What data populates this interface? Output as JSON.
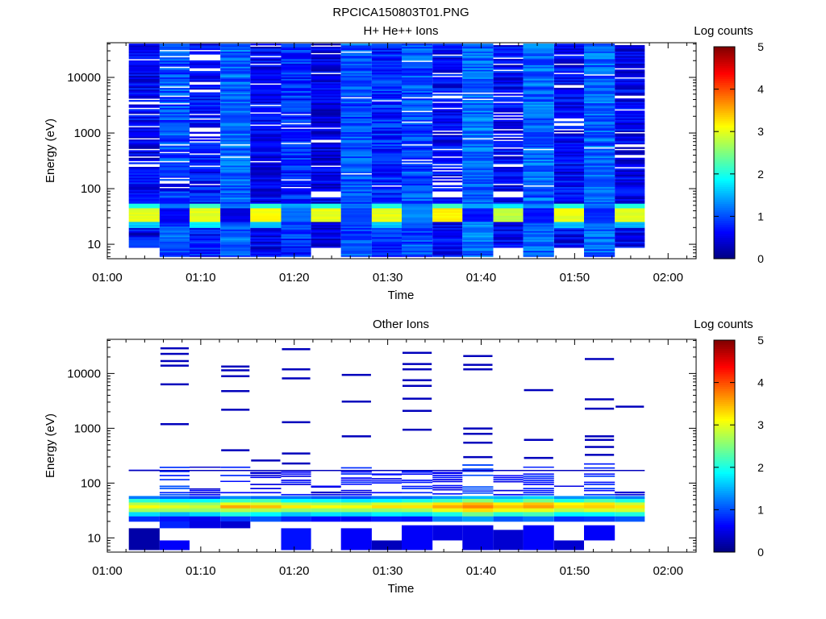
{
  "figure_title": "RPCICA150803T01.PNG",
  "colormap": [
    "#00007f",
    "#0000ff",
    "#007fff",
    "#00ffff",
    "#7fff7f",
    "#ffff00",
    "#ff7f00",
    "#ff0000",
    "#7f0000"
  ],
  "chart_data": [
    {
      "type": "heatmap",
      "panel": "top",
      "title": "H+ He++ Ions",
      "xlabel": "Time",
      "ylabel": "Energy (eV)",
      "x_unit": "minutes after 01:00",
      "xlim": [
        0,
        63
      ],
      "x_ticks": [
        0,
        10,
        20,
        30,
        40,
        50,
        60
      ],
      "x_tick_labels": [
        "01:00",
        "01:10",
        "01:20",
        "01:30",
        "01:40",
        "01:50",
        "02:00"
      ],
      "y_scale": "log",
      "ylim": [
        5.5,
        42000
      ],
      "y_ticks": [
        10,
        100,
        1000,
        10000
      ],
      "y_tick_labels": [
        "10",
        "100",
        "1000",
        "10000"
      ],
      "colorbar": {
        "label": "Log counts",
        "range": [
          0,
          5
        ],
        "ticks": [
          "0",
          "1",
          "2",
          "3",
          "4",
          "5"
        ]
      },
      "columns": [
        {
          "t0": 2.3,
          "t1": 5.6,
          "emin": 9,
          "emax": 40000,
          "base": 0.55,
          "seed": 1,
          "bands": [
            [
              25,
              45,
              3.0
            ],
            [
              45,
              55,
              2.0
            ],
            [
              20,
              25,
              1.6
            ],
            [
              9,
              14,
              0.9
            ]
          ],
          "gaps": [
            9,
            17,
            0.15
          ]
        },
        {
          "t0": 5.6,
          "t1": 8.8,
          "emin": 6,
          "emax": 40000,
          "base": 1.0,
          "seed": 2,
          "bands": [
            [
              25,
              45,
              0.6
            ],
            [
              45,
              55,
              1.2
            ],
            [
              90,
              140,
              0.4
            ]
          ],
          "gaps": [
            9,
            17,
            0.1
          ]
        },
        {
          "t0": 8.8,
          "t1": 12.1,
          "emin": 6,
          "emax": 40000,
          "base": 0.7,
          "seed": 3,
          "bands": [
            [
              25,
              45,
              3.0
            ],
            [
              45,
              55,
              2.2
            ],
            [
              20,
              25,
              1.8
            ]
          ],
          "gaps": [
            9,
            17,
            0.18
          ]
        },
        {
          "t0": 12.1,
          "t1": 15.3,
          "emin": 6,
          "emax": 40000,
          "base": 1.1,
          "seed": 4,
          "bands": [
            [
              25,
              45,
              0.5
            ],
            [
              45,
              55,
              1.2
            ]
          ],
          "gaps": [
            9,
            17,
            0.02
          ]
        },
        {
          "t0": 15.3,
          "t1": 18.6,
          "emin": 6,
          "emax": 40000,
          "base": 0.55,
          "seed": 5,
          "bands": [
            [
              25,
              45,
              3.1
            ],
            [
              45,
              55,
              2.0
            ],
            [
              20,
              25,
              1.5
            ]
          ],
          "gaps": [
            9,
            17,
            0.12
          ]
        },
        {
          "t0": 18.6,
          "t1": 21.8,
          "emin": 6,
          "emax": 40000,
          "base": 0.85,
          "seed": 6,
          "bands": [
            [
              25,
              45,
              1.2
            ],
            [
              45,
              55,
              1.4
            ]
          ],
          "gaps": [
            9,
            17,
            0.08
          ]
        },
        {
          "t0": 21.8,
          "t1": 25.0,
          "emin": 9,
          "emax": 40000,
          "base": 0.5,
          "seed": 7,
          "bands": [
            [
              25,
              45,
              3.0
            ],
            [
              45,
              55,
              2.0
            ],
            [
              70,
              90,
              -1.0
            ]
          ],
          "gaps": [
            9,
            17,
            0.05
          ]
        },
        {
          "t0": 25.0,
          "t1": 28.3,
          "emin": 6,
          "emax": 40000,
          "base": 1.0,
          "seed": 8,
          "bands": [
            [
              25,
              45,
              0.9
            ],
            [
              45,
              55,
              1.2
            ]
          ],
          "gaps": [
            9,
            17,
            0.03
          ]
        },
        {
          "t0": 28.3,
          "t1": 31.5,
          "emin": 6,
          "emax": 40000,
          "base": 0.8,
          "seed": 9,
          "bands": [
            [
              25,
              45,
              3.0
            ],
            [
              45,
              55,
              2.0
            ],
            [
              20,
              25,
              1.6
            ]
          ],
          "gaps": [
            9,
            17,
            0.05
          ]
        },
        {
          "t0": 31.5,
          "t1": 34.8,
          "emin": 6,
          "emax": 40000,
          "base": 1.0,
          "seed": 10,
          "bands": [
            [
              25,
              45,
              1.3
            ],
            [
              45,
              55,
              1.2
            ]
          ],
          "gaps": [
            9,
            17,
            0.06
          ]
        },
        {
          "t0": 34.8,
          "t1": 38.0,
          "emin": 6,
          "emax": 40000,
          "base": 0.6,
          "seed": 11,
          "bands": [
            [
              25,
              45,
              3.2
            ],
            [
              45,
              55,
              2.1
            ],
            [
              70,
              90,
              -1.0
            ]
          ],
          "gaps": [
            9,
            17,
            0.18
          ]
        },
        {
          "t0": 38.0,
          "t1": 41.3,
          "emin": 6,
          "emax": 40000,
          "base": 1.15,
          "seed": 12,
          "bands": [
            [
              25,
              45,
              0.7
            ],
            [
              45,
              55,
              1.5
            ]
          ],
          "gaps": [
            9,
            17,
            0.04
          ]
        },
        {
          "t0": 41.3,
          "t1": 44.5,
          "emin": 9,
          "emax": 40000,
          "base": 0.6,
          "seed": 13,
          "bands": [
            [
              25,
              45,
              2.8
            ],
            [
              45,
              55,
              1.8
            ],
            [
              70,
              90,
              -1.0
            ]
          ],
          "gaps": [
            9,
            17,
            0.15
          ]
        },
        {
          "t0": 44.5,
          "t1": 47.8,
          "emin": 6,
          "emax": 40000,
          "base": 1.1,
          "seed": 14,
          "bands": [
            [
              25,
              45,
              0.7
            ],
            [
              45,
              55,
              1.3
            ]
          ],
          "gaps": [
            9,
            17,
            0.03
          ]
        },
        {
          "t0": 47.8,
          "t1": 51.0,
          "emin": 9,
          "emax": 40000,
          "base": 0.6,
          "seed": 15,
          "bands": [
            [
              25,
              45,
              3.0
            ],
            [
              45,
              55,
              2.0
            ],
            [
              20,
              25,
              1.6
            ]
          ],
          "gaps": [
            9,
            17,
            0.08
          ]
        },
        {
          "t0": 51.0,
          "t1": 54.3,
          "emin": 6,
          "emax": 40000,
          "base": 1.1,
          "seed": 16,
          "bands": [
            [
              25,
              45,
              0.8
            ],
            [
              45,
              55,
              1.2
            ]
          ],
          "gaps": [
            9,
            17,
            0.02
          ]
        },
        {
          "t0": 54.3,
          "t1": 57.5,
          "emin": 9,
          "emax": 40000,
          "base": 0.55,
          "seed": 17,
          "bands": [
            [
              25,
              45,
              3.0
            ],
            [
              45,
              55,
              2.0
            ],
            [
              20,
              25,
              1.5
            ]
          ],
          "gaps": [
            9,
            17,
            0.12
          ]
        }
      ]
    },
    {
      "type": "heatmap",
      "panel": "bottom",
      "title": "Other Ions",
      "xlabel": "Time",
      "ylabel": "Energy (eV)",
      "x_unit": "minutes after 01:00",
      "xlim": [
        0,
        63
      ],
      "x_ticks": [
        0,
        10,
        20,
        30,
        40,
        50,
        60
      ],
      "x_tick_labels": [
        "01:00",
        "01:10",
        "01:20",
        "01:30",
        "01:40",
        "01:50",
        "02:00"
      ],
      "y_scale": "log",
      "ylim": [
        5.5,
        42000
      ],
      "y_ticks": [
        10,
        100,
        1000,
        10000
      ],
      "y_tick_labels": [
        "10",
        "100",
        "1000",
        "10000"
      ],
      "colorbar": {
        "label": "Log counts",
        "range": [
          0,
          5
        ],
        "ticks": [
          "0",
          "1",
          "2",
          "3",
          "4",
          "5"
        ]
      },
      "core": {
        "rows": [
          [
            20,
            25,
            0.6
          ],
          [
            25,
            30,
            1.6
          ],
          [
            30,
            35,
            2.5
          ],
          [
            35,
            40,
            3.0
          ],
          [
            40,
            45,
            2.7
          ],
          [
            45,
            52,
            1.8
          ],
          [
            52,
            58,
            1.0
          ]
        ],
        "col_boost": [
          0.2,
          0.1,
          0.0,
          0.4,
          0.3,
          0.1,
          0.0,
          0.0,
          0.2,
          0.2,
          0.5,
          0.7,
          0.4,
          0.6,
          0.3,
          0.4,
          0.3
        ]
      },
      "columns": [
        {
          "t0": 2.3,
          "t1": 5.6,
          "low": [
            [
              6,
              15,
              0.2
            ]
          ],
          "mid": [
            [
              168,
              176,
              0.5
            ]
          ],
          "lines": []
        },
        {
          "t0": 5.6,
          "t1": 8.8,
          "low": [
            [
              6,
              9,
              0.6
            ],
            [
              15,
              20,
              0.8
            ]
          ],
          "mid": [
            [
              58,
              90,
              0.9
            ],
            [
              100,
              200,
              0.8
            ]
          ],
          "lines": [
            1200,
            6400,
            14000,
            17000,
            23000,
            29000
          ]
        },
        {
          "t0": 8.8,
          "t1": 12.1,
          "low": [
            [
              15,
              20,
              0.5
            ]
          ],
          "mid": [
            [
              58,
              80,
              0.5
            ],
            [
              170,
              200,
              0.5
            ]
          ],
          "lines": []
        },
        {
          "t0": 12.1,
          "t1": 15.3,
          "low": [
            [
              15,
              20,
              0.4
            ]
          ],
          "mid": [
            [
              58,
              70,
              0.8
            ],
            [
              90,
              110,
              0.7
            ],
            [
              130,
              200,
              0.9
            ]
          ],
          "lines": [
            400,
            2200,
            4800,
            9000,
            11500,
            13500
          ]
        },
        {
          "t0": 15.3,
          "t1": 18.6,
          "low": [],
          "mid": [
            [
              58,
              100,
              0.6
            ],
            [
              120,
              160,
              0.5
            ]
          ],
          "lines": [
            260
          ]
        },
        {
          "t0": 18.6,
          "t1": 21.8,
          "low": [
            [
              6,
              15,
              0.7
            ]
          ],
          "mid": [
            [
              58,
              170,
              0.6
            ]
          ],
          "lines": [
            230,
            350,
            1300,
            8200,
            12000,
            28000
          ]
        },
        {
          "t0": 21.8,
          "t1": 25.0,
          "low": [],
          "mid": [
            [
              58,
              70,
              0.4
            ],
            [
              80,
              90,
              0.5
            ]
          ],
          "lines": []
        },
        {
          "t0": 25.0,
          "t1": 28.3,
          "low": [
            [
              6,
              15,
              0.6
            ]
          ],
          "mid": [
            [
              58,
              80,
              0.5
            ],
            [
              90,
              210,
              0.7
            ]
          ],
          "lines": [
            720,
            3100,
            9500
          ]
        },
        {
          "t0": 28.3,
          "t1": 31.5,
          "low": [
            [
              6,
              9,
              0.3
            ]
          ],
          "mid": [
            [
              58,
              80,
              0.5
            ],
            [
              95,
              150,
              0.6
            ]
          ],
          "lines": []
        },
        {
          "t0": 31.5,
          "t1": 34.8,
          "low": [
            [
              6,
              17,
              0.6
            ]
          ],
          "mid": [
            [
              58,
              170,
              0.8
            ]
          ],
          "lines": [
            950,
            2100,
            3500,
            6000,
            7600,
            12000,
            15000,
            24000
          ]
        },
        {
          "t0": 34.8,
          "t1": 38.0,
          "low": [
            [
              9,
              17,
              0.5
            ]
          ],
          "mid": [
            [
              60,
              160,
              0.6
            ]
          ],
          "lines": []
        },
        {
          "t0": 38.0,
          "t1": 41.3,
          "low": [
            [
              6,
              17,
              0.5
            ]
          ],
          "mid": [
            [
              62,
              90,
              0.9
            ],
            [
              120,
              220,
              0.9
            ]
          ],
          "lines": [
            300,
            550,
            800,
            1000,
            12000,
            14500,
            21000
          ]
        },
        {
          "t0": 41.3,
          "t1": 44.5,
          "low": [
            [
              6,
              14,
              0.4
            ]
          ],
          "mid": [
            [
              58,
              80,
              0.5
            ],
            [
              100,
              140,
              0.6
            ]
          ],
          "lines": []
        },
        {
          "t0": 44.5,
          "t1": 47.8,
          "low": [
            [
              6,
              17,
              0.6
            ]
          ],
          "mid": [
            [
              58,
              200,
              0.8
            ]
          ],
          "lines": [
            290,
            620,
            5000
          ]
        },
        {
          "t0": 47.8,
          "t1": 51.0,
          "low": [
            [
              6,
              9,
              0.4
            ]
          ],
          "mid": [
            [
              80,
              90,
              0.5
            ]
          ],
          "lines": []
        },
        {
          "t0": 51.0,
          "t1": 54.3,
          "low": [
            [
              9,
              17,
              0.6
            ]
          ],
          "mid": [
            [
              58,
              230,
              0.8
            ]
          ],
          "lines": [
            330,
            460,
            620,
            720,
            2300,
            3400,
            18500
          ]
        },
        {
          "t0": 54.3,
          "t1": 57.5,
          "low": [],
          "mid": [
            [
              58,
              70,
              0.4
            ]
          ],
          "lines": [
            2500
          ]
        }
      ],
      "hline": {
        "energy": 170,
        "t0": 2.3,
        "t1": 57.5
      }
    }
  ]
}
